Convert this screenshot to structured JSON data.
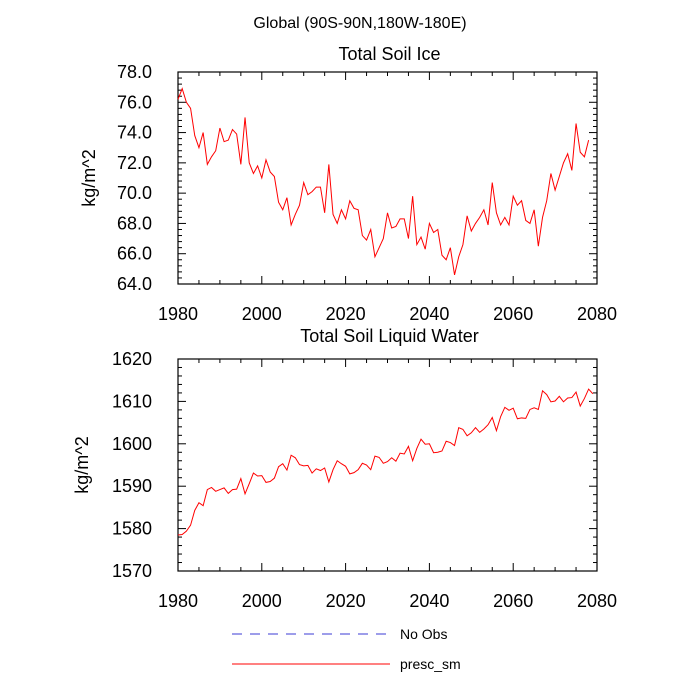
{
  "figure_title": "Global (90S-90N,180W-180E)",
  "legend": [
    {
      "label": "No Obs",
      "color": "#3b3bd6",
      "style": "dashed"
    },
    {
      "label": "presc_sm",
      "color": "#ff0000",
      "style": "solid"
    }
  ],
  "chart_data": [
    {
      "type": "line",
      "title": "Total Soil Ice",
      "xlabel": "",
      "ylabel": "kg/m^2",
      "xlim": [
        1980,
        2080
      ],
      "ylim": [
        64,
        78
      ],
      "x_major_ticks": [
        1980,
        2000,
        2020,
        2040,
        2060,
        2080
      ],
      "y_major_ticks": [
        64,
        66,
        68,
        70,
        72,
        74,
        76,
        78
      ],
      "x_tick_labels": [
        "1980",
        "2000",
        "2020",
        "2040",
        "2060",
        "2080"
      ],
      "y_tick_labels": [
        "64.0",
        "66.0",
        "68.0",
        "70.0",
        "72.0",
        "74.0",
        "76.0",
        "78.0"
      ],
      "series": [
        {
          "name": "presc_sm",
          "color": "#ff0000",
          "x_start": 1980,
          "x_step": 1,
          "values": [
            76.2,
            76.9,
            76.0,
            75.6,
            73.8,
            73.0,
            74.0,
            71.9,
            72.4,
            72.8,
            74.3,
            73.4,
            73.5,
            74.2,
            73.9,
            71.9,
            75.0,
            72.0,
            71.3,
            71.8,
            71.0,
            72.2,
            71.4,
            71.1,
            69.4,
            68.9,
            69.7,
            67.9,
            68.6,
            69.2,
            70.7,
            69.9,
            70.1,
            70.4,
            70.4,
            68.7,
            71.9,
            68.6,
            68.0,
            68.9,
            68.3,
            69.5,
            69.0,
            68.9,
            67.2,
            66.9,
            67.6,
            65.8,
            66.4,
            67.0,
            68.7,
            67.7,
            67.8,
            68.3,
            68.3,
            67.0,
            69.8,
            66.6,
            67.1,
            66.3,
            68.0,
            67.4,
            67.6,
            65.9,
            65.6,
            66.4,
            64.6,
            65.8,
            66.6,
            68.5,
            67.5,
            68.0,
            68.4,
            68.9,
            67.9,
            70.7,
            68.7,
            67.9,
            68.4,
            67.9,
            69.8,
            69.2,
            69.5,
            68.2,
            68.0,
            68.9,
            66.5,
            68.4,
            69.5,
            71.3,
            70.2,
            71.1,
            72.0,
            72.6,
            71.5,
            74.6,
            72.7,
            72.4,
            73.5
          ]
        }
      ]
    },
    {
      "type": "line",
      "title": "Total Soil Liquid Water",
      "xlabel": "",
      "ylabel": "kg/m^2",
      "xlim": [
        1980,
        2080
      ],
      "ylim": [
        1570,
        1620
      ],
      "x_major_ticks": [
        1980,
        2000,
        2020,
        2040,
        2060,
        2080
      ],
      "y_major_ticks": [
        1570,
        1580,
        1590,
        1600,
        1610,
        1620
      ],
      "x_tick_labels": [
        "1980",
        "2000",
        "2020",
        "2040",
        "2060",
        "2080"
      ],
      "y_tick_labels": [
        "1570",
        "1580",
        "1590",
        "1600",
        "1610",
        "1620"
      ],
      "series": [
        {
          "name": "presc_sm",
          "color": "#ff0000",
          "x_start": 1980,
          "x_step": 1,
          "values": [
            1578.5,
            1578.6,
            1579.4,
            1580.8,
            1584.3,
            1586.1,
            1585.4,
            1589.2,
            1589.7,
            1588.8,
            1589.2,
            1589.6,
            1588.3,
            1589.2,
            1589.3,
            1591.8,
            1588.2,
            1590.6,
            1593.1,
            1592.4,
            1592.5,
            1590.9,
            1591.1,
            1591.9,
            1594.6,
            1595.3,
            1593.8,
            1597.3,
            1596.7,
            1595.1,
            1594.8,
            1594.9,
            1593.1,
            1594.1,
            1593.7,
            1594.3,
            1591.0,
            1593.9,
            1596.0,
            1595.3,
            1594.7,
            1592.9,
            1593.2,
            1593.9,
            1595.4,
            1595.0,
            1593.9,
            1597.1,
            1596.8,
            1595.4,
            1595.8,
            1596.7,
            1595.9,
            1597.8,
            1597.6,
            1599.4,
            1596.0,
            1598.9,
            1601.1,
            1599.9,
            1600.0,
            1597.9,
            1598.0,
            1598.3,
            1600.6,
            1600.3,
            1599.6,
            1603.8,
            1603.4,
            1601.9,
            1602.6,
            1603.8,
            1602.7,
            1603.5,
            1604.5,
            1606.2,
            1603.1,
            1606.4,
            1608.6,
            1607.9,
            1608.4,
            1605.9,
            1606.1,
            1606.0,
            1608.1,
            1608.5,
            1608.1,
            1612.5,
            1611.6,
            1609.9,
            1610.1,
            1611.2,
            1609.9,
            1610.8,
            1610.9,
            1612.2,
            1608.9,
            1610.7,
            1612.9,
            1611.8
          ]
        }
      ]
    }
  ]
}
